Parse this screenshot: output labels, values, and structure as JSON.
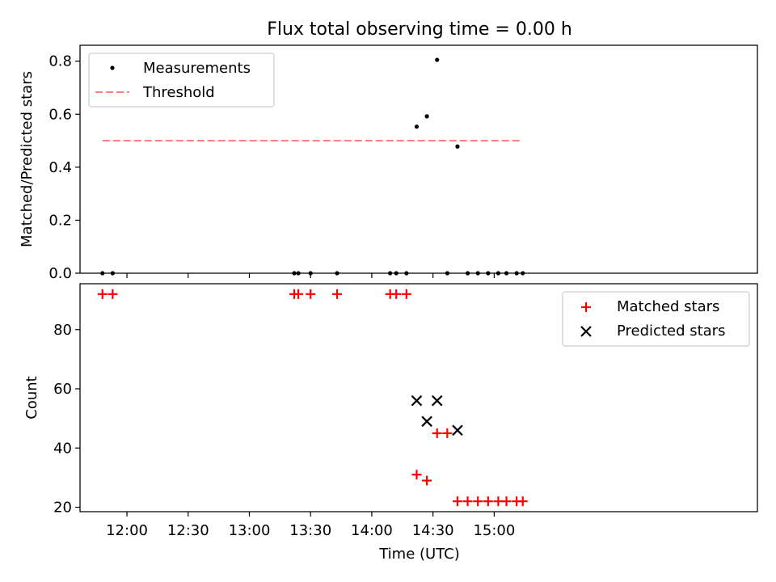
{
  "figure": {
    "title": "Flux total observing time = 0.00 h",
    "xlabel": "Time (UTC)",
    "x_tick_labels": [
      "12:00",
      "12:30",
      "13:00",
      "13:30",
      "14:00",
      "14:30",
      "15:00"
    ]
  },
  "chart_data": [
    {
      "type": "scatter",
      "title": "Flux total observing time = 0.00 h",
      "xlabel": "",
      "ylabel": "Matched/Predicted stars",
      "xlim_minutes": [
        697,
        1029
      ],
      "ylim": [
        0,
        0.86
      ],
      "yticks": [
        0.0,
        0.2,
        0.4,
        0.6,
        0.8
      ],
      "ytick_labels": [
        "0.0",
        "0.2",
        "0.4",
        "0.6",
        "0.8"
      ],
      "legend_position": "top-left",
      "series": [
        {
          "name": "Measurements",
          "marker": "dot",
          "color": "#000000",
          "x": [
            708,
            713,
            802,
            804,
            810,
            823,
            849,
            852,
            857,
            862,
            867,
            872,
            877,
            882,
            887,
            892,
            897,
            902,
            906,
            911,
            914
          ],
          "y": [
            0,
            0,
            0,
            0,
            0,
            0,
            0,
            0,
            0,
            0.553,
            0.592,
            0.805,
            0,
            0.478,
            0,
            0,
            0,
            0,
            0,
            0,
            0
          ]
        },
        {
          "name": "Threshold",
          "style": "dashed-line",
          "color": "#ff7f7f",
          "x": [
            708,
            914
          ],
          "y": [
            0.5,
            0.5
          ]
        }
      ]
    },
    {
      "type": "scatter",
      "xlabel": "Time (UTC)",
      "ylabel": "Count",
      "xlim_minutes": [
        697,
        1029
      ],
      "ylim": [
        18.5,
        95.5
      ],
      "yticks": [
        20,
        40,
        60,
        80
      ],
      "ytick_labels": [
        "20",
        "40",
        "60",
        "80"
      ],
      "legend_position": "top-right",
      "series": [
        {
          "name": "Matched stars",
          "marker": "plus",
          "color": "#ff0000",
          "x": [
            708,
            713,
            802,
            804,
            810,
            823,
            849,
            852,
            857,
            862,
            867,
            872,
            877,
            882,
            887,
            892,
            897,
            902,
            906,
            911,
            914
          ],
          "y": [
            92,
            92,
            92,
            92,
            92,
            92,
            92,
            92,
            92,
            31,
            29,
            45,
            45,
            22,
            22,
            22,
            22,
            22,
            22,
            22,
            22
          ]
        },
        {
          "name": "Predicted stars",
          "marker": "x",
          "color": "#000000",
          "x": [
            862,
            867,
            872,
            882
          ],
          "y": [
            56,
            49,
            56,
            46
          ]
        }
      ]
    }
  ]
}
